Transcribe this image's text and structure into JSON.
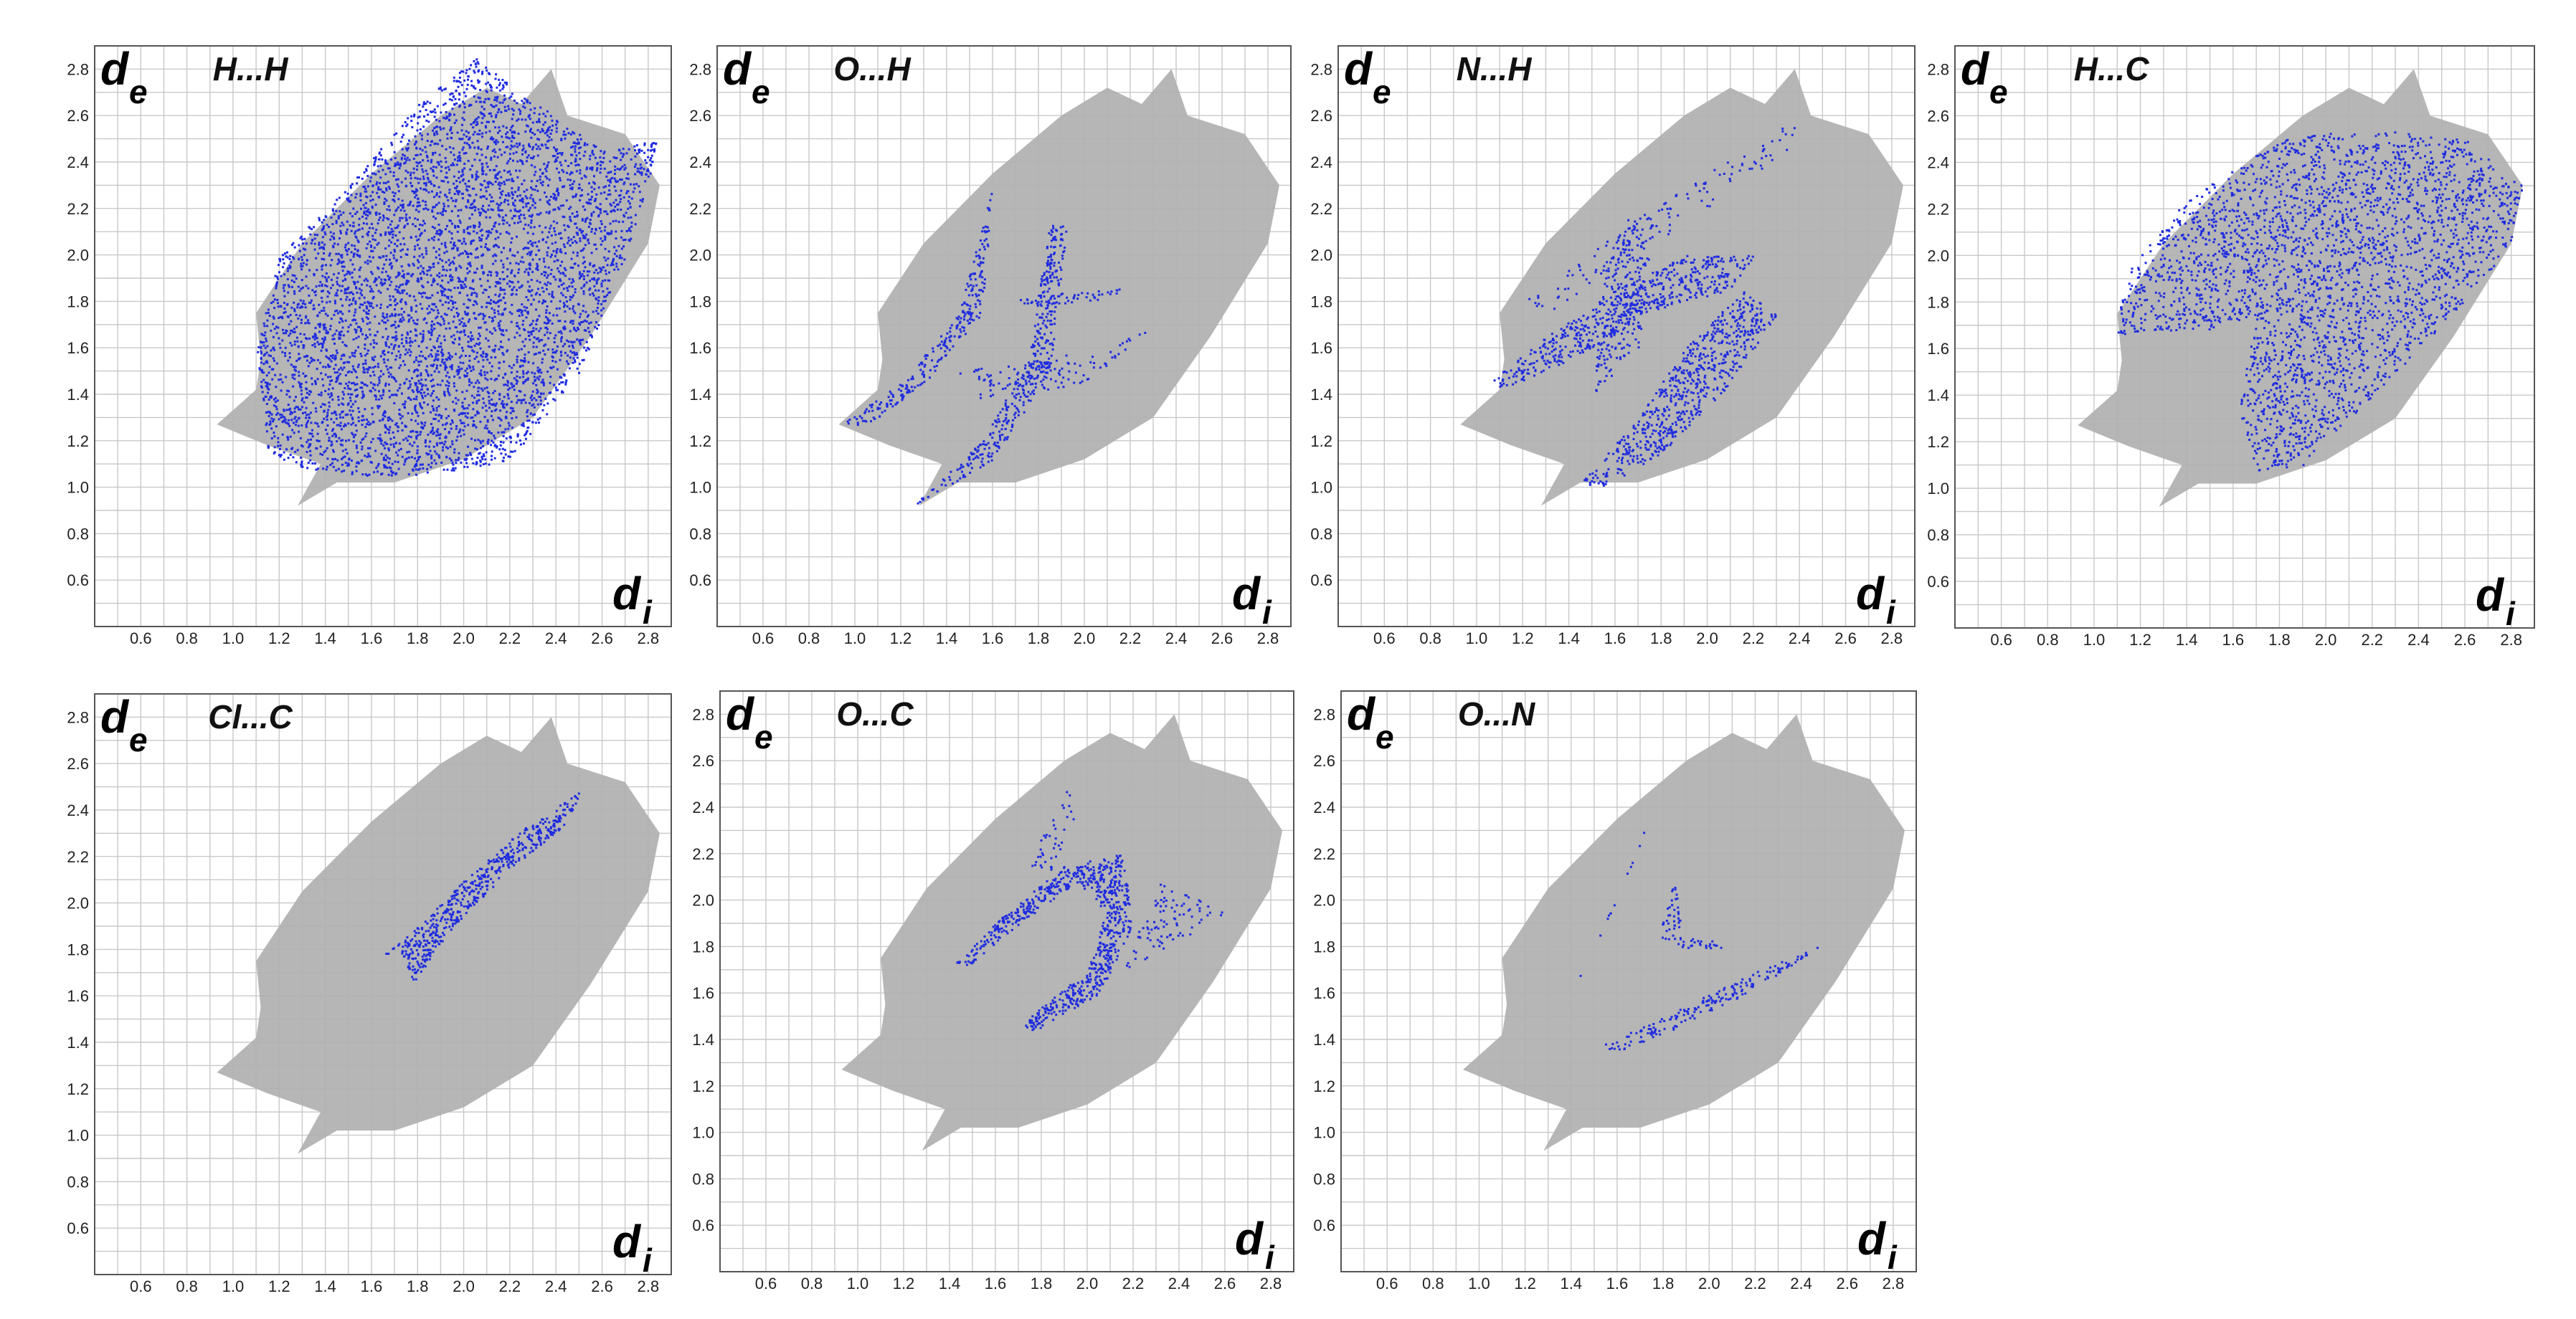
{
  "chart_data": [
    {
      "type": "scatter",
      "title": "H...H",
      "xlabel": "d",
      "xlabel_sub": "i",
      "ylabel": "d",
      "ylabel_sub": "e",
      "x_ticks": [
        "0.6",
        "0.8",
        "1.0",
        "1.2",
        "1.4",
        "1.6",
        "1.8",
        "2.0",
        "2.2",
        "2.4",
        "2.6",
        "2.8"
      ],
      "y_ticks": [
        "0.6",
        "0.8",
        "1.0",
        "1.2",
        "1.4",
        "1.6",
        "1.8",
        "2.0",
        "2.2",
        "2.4",
        "2.6",
        "2.8"
      ],
      "xlim": [
        0.4,
        2.9
      ],
      "ylim": [
        0.4,
        2.9
      ],
      "grid": true,
      "background_color": "#b0b0b0",
      "highlight_color": "#1e2be0",
      "highlight_regions": [
        {
          "poly": [
            [
              1.15,
              1.15
            ],
            [
              1.3,
              1.08
            ],
            [
              1.6,
              1.05
            ],
            [
              1.9,
              1.06
            ],
            [
              2.2,
              1.12
            ],
            [
              2.5,
              1.5
            ],
            [
              2.7,
              2.0
            ],
            [
              2.85,
              2.5
            ],
            [
              2.6,
              2.45
            ],
            [
              2.25,
              2.7
            ],
            [
              2.05,
              2.85
            ],
            [
              1.8,
              2.65
            ],
            [
              1.5,
              2.3
            ],
            [
              1.2,
              2.0
            ],
            [
              1.1,
              1.6
            ]
          ],
          "density": 1.6
        }
      ]
    },
    {
      "type": "scatter",
      "title": "O...H",
      "xlabel": "d",
      "xlabel_sub": "i",
      "ylabel": "d",
      "ylabel_sub": "e",
      "x_ticks": [
        "0.6",
        "0.8",
        "1.0",
        "1.2",
        "1.4",
        "1.6",
        "1.8",
        "2.0",
        "2.2",
        "2.4",
        "2.6",
        "2.8"
      ],
      "y_ticks": [
        "0.6",
        "0.8",
        "1.0",
        "1.2",
        "1.4",
        "1.6",
        "1.8",
        "2.0",
        "2.2",
        "2.4",
        "2.6",
        "2.8"
      ],
      "xlim": [
        0.4,
        2.9
      ],
      "ylim": [
        0.4,
        2.9
      ],
      "grid": true,
      "background_color": "#b0b0b0",
      "highlight_color": "#1e2be0",
      "highlight_regions": [
        {
          "poly": [
            [
              0.93,
              1.27
            ],
            [
              1.2,
              1.45
            ],
            [
              1.45,
              1.75
            ],
            [
              1.6,
              2.3
            ],
            [
              1.55,
              1.75
            ],
            [
              1.3,
              1.45
            ],
            [
              1.05,
              1.27
            ]
          ],
          "density": 0.7
        },
        {
          "poly": [
            [
              1.25,
              0.92
            ],
            [
              1.55,
              1.2
            ],
            [
              1.75,
              1.55
            ],
            [
              1.85,
              2.15
            ],
            [
              1.92,
              2.12
            ],
            [
              1.85,
              1.5
            ],
            [
              1.6,
              1.12
            ],
            [
              1.3,
              0.95
            ]
          ],
          "density": 0.7
        },
        {
          "poly": [
            [
              1.7,
              1.82
            ],
            [
              2.15,
              1.86
            ],
            [
              2.15,
              1.82
            ],
            [
              1.75,
              1.78
            ]
          ],
          "density": 0.5
        },
        {
          "poly": [
            [
              1.45,
              1.5
            ],
            [
              2.1,
              1.6
            ],
            [
              2.3,
              1.7
            ],
            [
              2.0,
              1.45
            ],
            [
              1.55,
              1.38
            ]
          ],
          "density": 0.25
        }
      ]
    },
    {
      "type": "scatter",
      "title": "N...H",
      "xlabel": "d",
      "xlabel_sub": "i",
      "ylabel": "d",
      "ylabel_sub": "e",
      "x_ticks": [
        "0.6",
        "0.8",
        "1.0",
        "1.2",
        "1.4",
        "1.6",
        "1.8",
        "2.0",
        "2.2",
        "2.4",
        "2.6",
        "2.8"
      ],
      "y_ticks": [
        "0.6",
        "0.8",
        "1.0",
        "1.2",
        "1.4",
        "1.6",
        "1.8",
        "2.0",
        "2.2",
        "2.4",
        "2.6",
        "2.8"
      ],
      "xlim": [
        0.4,
        2.9
      ],
      "ylim": [
        0.4,
        2.9
      ],
      "grid": true,
      "background_color": "#b0b0b0",
      "highlight_color": "#1e2be0",
      "highlight_regions": [
        {
          "poly": [
            [
              1.05,
              1.45
            ],
            [
              1.3,
              1.65
            ],
            [
              1.6,
              1.85
            ],
            [
              1.9,
              2.0
            ],
            [
              2.2,
              2.0
            ],
            [
              2.1,
              1.85
            ],
            [
              1.75,
              1.75
            ],
            [
              1.4,
              1.55
            ],
            [
              1.1,
              1.42
            ]
          ],
          "density": 0.6
        },
        {
          "poly": [
            [
              1.45,
              1.02
            ],
            [
              1.7,
              1.3
            ],
            [
              1.9,
              1.6
            ],
            [
              2.15,
              1.85
            ],
            [
              2.3,
              1.75
            ],
            [
              2.1,
              1.45
            ],
            [
              1.8,
              1.15
            ],
            [
              1.55,
              1.0
            ]
          ],
          "density": 0.6
        },
        {
          "poly": [
            [
              1.5,
              1.4
            ],
            [
              1.55,
              1.9
            ],
            [
              1.65,
              2.2
            ],
            [
              1.75,
              2.05
            ],
            [
              1.7,
              1.6
            ]
          ],
          "density": 0.4
        },
        {
          "poly": [
            [
              1.2,
              1.8
            ],
            [
              1.6,
              2.1
            ],
            [
              2.0,
              2.35
            ],
            [
              2.35,
              2.6
            ],
            [
              2.4,
              2.5
            ],
            [
              2.0,
              2.2
            ],
            [
              1.6,
              1.95
            ],
            [
              1.3,
              1.75
            ]
          ],
          "density": 0.15
        }
      ]
    },
    {
      "type": "scatter",
      "title": "H...C",
      "xlabel": "d",
      "xlabel_sub": "i",
      "ylabel": "d",
      "ylabel_sub": "e",
      "x_ticks": [
        "0.6",
        "0.8",
        "1.0",
        "1.2",
        "1.4",
        "1.6",
        "1.8",
        "2.0",
        "2.2",
        "2.4",
        "2.6",
        "2.8"
      ],
      "y_ticks": [
        "0.6",
        "0.8",
        "1.0",
        "1.2",
        "1.4",
        "1.6",
        "1.8",
        "2.0",
        "2.2",
        "2.4",
        "2.6",
        "2.8"
      ],
      "xlim": [
        0.4,
        2.9
      ],
      "ylim": [
        0.4,
        2.9
      ],
      "grid": true,
      "background_color": "#b0b0b0",
      "highlight_color": "#1e2be0",
      "highlight_regions": [
        {
          "poly": [
            [
              1.08,
              1.65
            ],
            [
              1.15,
              1.95
            ],
            [
              1.4,
              2.25
            ],
            [
              1.8,
              2.5
            ],
            [
              2.2,
              2.55
            ],
            [
              2.6,
              2.5
            ],
            [
              2.85,
              2.3
            ],
            [
              2.8,
              2.05
            ],
            [
              2.5,
              1.7
            ],
            [
              2.1,
              1.3
            ],
            [
              1.9,
              1.1
            ],
            [
              1.7,
              1.08
            ],
            [
              1.62,
              1.35
            ],
            [
              1.7,
              1.75
            ],
            [
              1.5,
              1.68
            ],
            [
              1.2,
              1.68
            ]
          ],
          "density": 1.4
        }
      ]
    },
    {
      "type": "scatter",
      "title": "Cl...C",
      "xlabel": "d",
      "xlabel_sub": "i",
      "ylabel": "d",
      "ylabel_sub": "e",
      "x_ticks": [
        "0.6",
        "0.8",
        "1.0",
        "1.2",
        "1.4",
        "1.6",
        "1.8",
        "2.0",
        "2.2",
        "2.4",
        "2.6",
        "2.8"
      ],
      "y_ticks": [
        "0.6",
        "0.8",
        "1.0",
        "1.2",
        "1.4",
        "1.6",
        "1.8",
        "2.0",
        "2.2",
        "2.4",
        "2.6",
        "2.8"
      ],
      "xlim": [
        0.4,
        2.9
      ],
      "ylim": [
        0.4,
        2.9
      ],
      "grid": true,
      "background_color": "#b0b0b0",
      "highlight_color": "#1e2be0",
      "highlight_regions": [
        {
          "poly": [
            [
              1.65,
              1.78
            ],
            [
              1.8,
              1.9
            ],
            [
              2.0,
              2.1
            ],
            [
              2.25,
              2.32
            ],
            [
              2.5,
              2.48
            ],
            [
              2.45,
              2.35
            ],
            [
              2.2,
              2.15
            ],
            [
              1.95,
              1.9
            ],
            [
              1.78,
              1.66
            ],
            [
              1.72,
              1.8
            ]
          ],
          "density": 0.9
        }
      ]
    },
    {
      "type": "scatter",
      "title": "O...C",
      "xlabel": "d",
      "xlabel_sub": "i",
      "ylabel": "d",
      "ylabel_sub": "e",
      "x_ticks": [
        "0.6",
        "0.8",
        "1.0",
        "1.2",
        "1.4",
        "1.6",
        "1.8",
        "2.0",
        "2.2",
        "2.4",
        "2.6",
        "2.8"
      ],
      "y_ticks": [
        "0.6",
        "0.8",
        "1.0",
        "1.2",
        "1.4",
        "1.6",
        "1.8",
        "2.0",
        "2.2",
        "2.4",
        "2.6",
        "2.8"
      ],
      "xlim": [
        0.4,
        2.9
      ],
      "ylim": [
        0.4,
        2.9
      ],
      "grid": true,
      "background_color": "#b0b0b0",
      "highlight_color": "#1e2be0",
      "highlight_regions": [
        {
          "poly": [
            [
              1.42,
              1.73
            ],
            [
              1.65,
              1.95
            ],
            [
              1.9,
              2.15
            ],
            [
              2.15,
              2.2
            ],
            [
              2.2,
              1.9
            ],
            [
              2.05,
              1.6
            ],
            [
              1.75,
              1.42
            ],
            [
              1.72,
              1.48
            ],
            [
              2.0,
              1.7
            ],
            [
              2.08,
              1.95
            ],
            [
              1.95,
              2.08
            ],
            [
              1.7,
              1.9
            ],
            [
              1.48,
              1.72
            ]
          ],
          "density": 0.9
        },
        {
          "poly": [
            [
              2.15,
              1.7
            ],
            [
              2.45,
              1.85
            ],
            [
              2.6,
              1.95
            ],
            [
              2.3,
              2.1
            ],
            [
              2.2,
              1.8
            ]
          ],
          "density": 0.2
        },
        {
          "poly": [
            [
              1.75,
              2.15
            ],
            [
              1.9,
              2.55
            ],
            [
              1.95,
              2.35
            ],
            [
              1.85,
              2.1
            ]
          ],
          "density": 0.15
        }
      ]
    },
    {
      "type": "scatter",
      "title": "O...N",
      "xlabel": "d",
      "xlabel_sub": "i",
      "ylabel": "d",
      "ylabel_sub": "e",
      "x_ticks": [
        "0.6",
        "0.8",
        "1.0",
        "1.2",
        "1.4",
        "1.6",
        "1.8",
        "2.0",
        "2.2",
        "2.4",
        "2.6",
        "2.8"
      ],
      "y_ticks": [
        "0.6",
        "0.8",
        "1.0",
        "1.2",
        "1.4",
        "1.6",
        "1.8",
        "2.0",
        "2.2",
        "2.4",
        "2.6",
        "2.8"
      ],
      "xlim": [
        0.4,
        2.9
      ],
      "ylim": [
        0.4,
        2.9
      ],
      "grid": true,
      "background_color": "#b0b0b0",
      "highlight_color": "#1e2be0",
      "highlight_regions": [
        {
          "poly": [
            [
              1.36,
              1.53
            ],
            [
              1.5,
              1.8
            ],
            [
              1.65,
              2.15
            ],
            [
              1.8,
              2.5
            ],
            [
              1.62,
              2.05
            ],
            [
              1.45,
              1.7
            ]
          ],
          "density": 0.6
        },
        {
          "poly": [
            [
              1.52,
              1.37
            ],
            [
              1.8,
              1.5
            ],
            [
              2.1,
              1.65
            ],
            [
              2.5,
              1.82
            ],
            [
              2.2,
              1.62
            ],
            [
              1.85,
              1.45
            ],
            [
              1.6,
              1.35
            ]
          ],
          "density": 0.6
        },
        {
          "poly": [
            [
              1.78,
              1.85
            ],
            [
              1.85,
              2.1
            ],
            [
              1.88,
              1.85
            ],
            [
              2.05,
              1.82
            ],
            [
              2.1,
              1.79
            ],
            [
              1.85,
              1.8
            ]
          ],
          "density": 0.5
        }
      ]
    }
  ]
}
